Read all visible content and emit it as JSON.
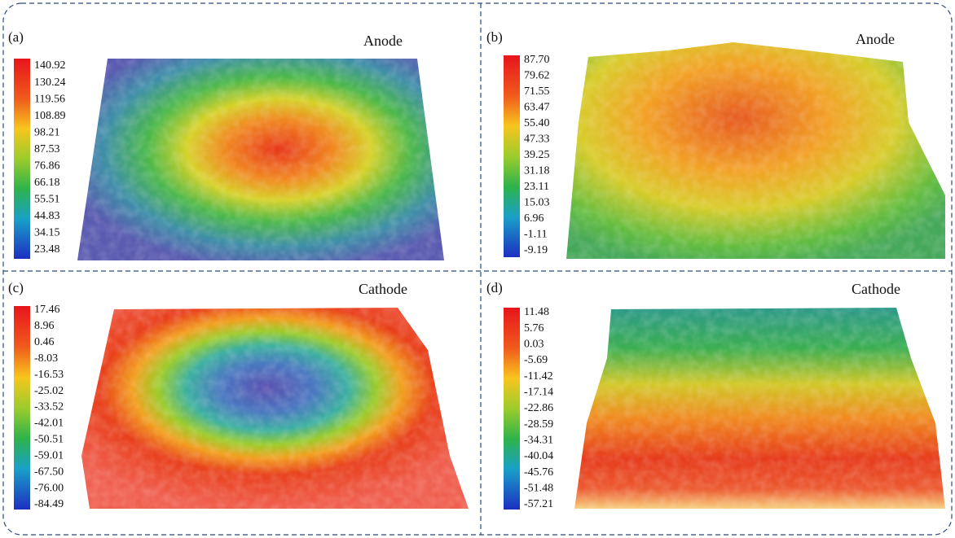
{
  "panels": [
    {
      "label": "(a)",
      "title": "Anode",
      "colorbar_labels": [
        "140.92",
        "130.24",
        "119.56",
        "108.89",
        "98.21",
        "87.53",
        "76.86",
        "66.18",
        "55.51",
        "44.83",
        "34.15",
        "23.48"
      ]
    },
    {
      "label": "(b)",
      "title": "Anode",
      "colorbar_labels": [
        "87.70",
        "79.62",
        "71.55",
        "63.47",
        "55.40",
        "47.33",
        "39.25",
        "31.18",
        "23.11",
        "15.03",
        "6.96",
        "-1.11",
        "-9.19"
      ]
    },
    {
      "label": "(c)",
      "title": "Cathode",
      "colorbar_labels": [
        "17.46",
        "8.96",
        "0.46",
        "-8.03",
        "-16.53",
        "-25.02",
        "-33.52",
        "-42.01",
        "-50.51",
        "-59.01",
        "-67.50",
        "-76.00",
        "-84.49"
      ]
    },
    {
      "label": "(d)",
      "title": "Cathode",
      "colorbar_labels": [
        "11.48",
        "5.76",
        "0.03",
        "-5.69",
        "-11.42",
        "-17.14",
        "-22.86",
        "-28.59",
        "-34.31",
        "-40.04",
        "-45.76",
        "-51.48",
        "-57.21"
      ]
    }
  ]
}
